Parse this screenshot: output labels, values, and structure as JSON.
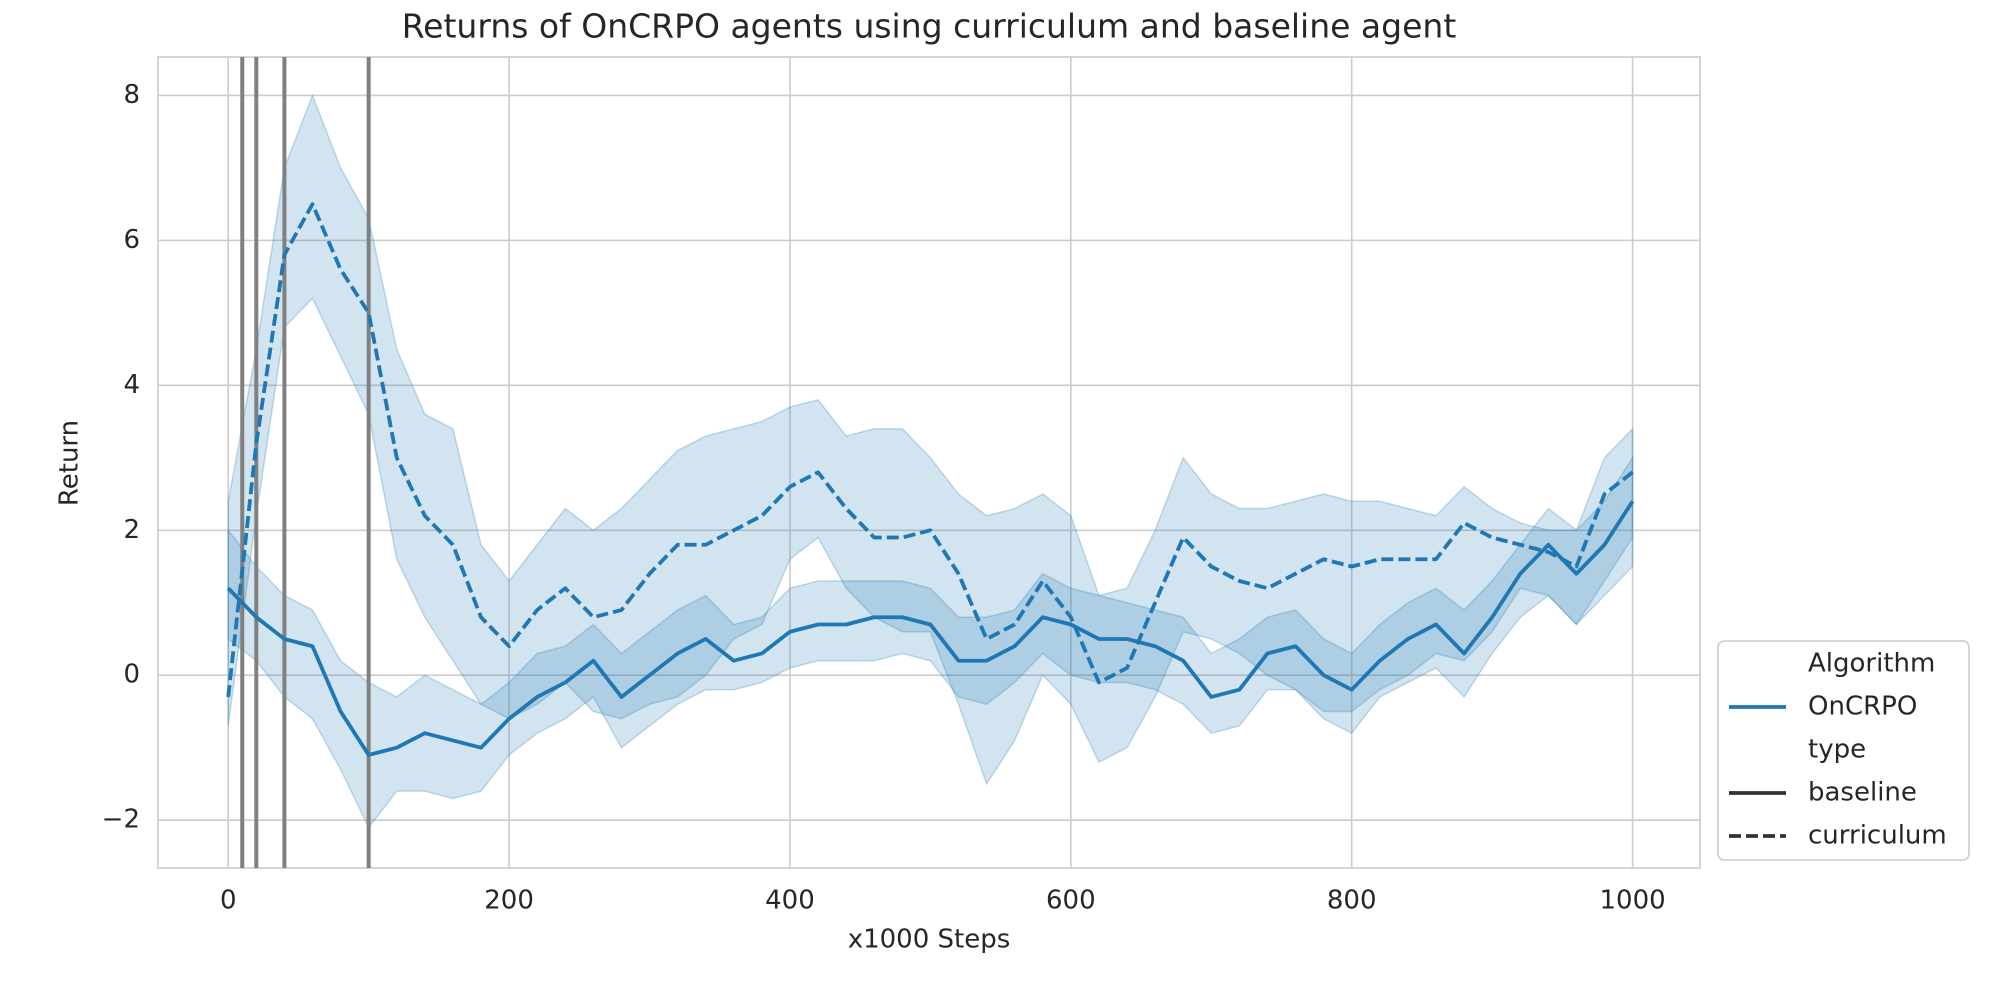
{
  "chart_data": {
    "type": "line",
    "title": "Returns of OnCRPO agents using curriculum and baseline agent",
    "xlabel": "x1000 Steps",
    "ylabel": "Return",
    "xlim": [
      -50,
      1048
    ],
    "ylim": [
      -2.66,
      8.53
    ],
    "xticks": [
      0,
      200,
      400,
      600,
      800,
      1000
    ],
    "yticks": [
      {
        "value": -2,
        "label": "−2"
      },
      0,
      2,
      4,
      6,
      8
    ],
    "grid": true,
    "vlines": [
      10,
      20,
      40,
      100
    ],
    "vline_color": "#808080",
    "x": [
      0,
      20,
      40,
      60,
      80,
      100,
      120,
      140,
      160,
      180,
      200,
      220,
      240,
      260,
      280,
      300,
      320,
      340,
      360,
      380,
      400,
      420,
      440,
      460,
      480,
      500,
      520,
      540,
      560,
      580,
      600,
      620,
      640,
      660,
      680,
      700,
      720,
      740,
      760,
      780,
      800,
      820,
      840,
      860,
      880,
      900,
      920,
      940,
      960,
      980,
      1000
    ],
    "algorithm": "OnCRPO",
    "series": [
      {
        "name": "baseline",
        "color": "#1f77b4",
        "dash": "solid",
        "values": [
          1.2,
          0.8,
          0.5,
          0.4,
          -0.5,
          -1.1,
          -1.0,
          -0.8,
          -0.9,
          -1.0,
          -0.6,
          -0.3,
          -0.1,
          0.2,
          -0.3,
          0.0,
          0.3,
          0.5,
          0.2,
          0.3,
          0.6,
          0.7,
          0.7,
          0.8,
          0.8,
          0.7,
          0.2,
          0.2,
          0.4,
          0.8,
          0.7,
          0.5,
          0.5,
          0.4,
          0.2,
          -0.3,
          -0.2,
          0.3,
          0.4,
          0.0,
          -0.2,
          0.2,
          0.5,
          0.7,
          0.3,
          0.8,
          1.4,
          1.8,
          1.4,
          1.8,
          2.4
        ],
        "lower": [
          0.5,
          0.2,
          -0.3,
          -0.6,
          -1.3,
          -2.1,
          -1.6,
          -1.6,
          -1.7,
          -1.6,
          -1.1,
          -0.8,
          -0.6,
          -0.3,
          -1.0,
          -0.7,
          -0.4,
          -0.2,
          -0.2,
          -0.1,
          0.1,
          0.2,
          0.2,
          0.2,
          0.3,
          0.2,
          -0.3,
          -0.4,
          -0.1,
          0.3,
          0.0,
          -0.1,
          -0.1,
          -0.2,
          -0.4,
          -0.8,
          -0.7,
          -0.2,
          -0.2,
          -0.6,
          -0.8,
          -0.3,
          -0.1,
          0.1,
          -0.3,
          0.3,
          0.8,
          1.1,
          0.7,
          1.1,
          1.5
        ],
        "upper": [
          2.0,
          1.5,
          1.1,
          0.9,
          0.2,
          -0.1,
          -0.3,
          0.0,
          -0.2,
          -0.4,
          -0.1,
          0.3,
          0.4,
          0.7,
          0.3,
          0.6,
          0.9,
          1.1,
          0.7,
          0.8,
          1.2,
          1.3,
          1.3,
          1.3,
          1.3,
          1.2,
          0.8,
          0.8,
          0.9,
          1.4,
          1.2,
          1.1,
          1.0,
          0.9,
          0.8,
          0.3,
          0.5,
          0.8,
          0.9,
          0.5,
          0.3,
          0.7,
          1.0,
          1.2,
          0.9,
          1.3,
          1.8,
          2.3,
          2.0,
          2.4,
          3.0
        ]
      },
      {
        "name": "curriculum",
        "color": "#1f77b4",
        "dash": "dashed",
        "values": [
          -0.3,
          3.2,
          5.8,
          6.5,
          5.6,
          5.0,
          3.0,
          2.2,
          1.8,
          0.8,
          0.4,
          0.9,
          1.2,
          0.8,
          0.9,
          1.4,
          1.8,
          1.8,
          2.0,
          2.2,
          2.6,
          2.8,
          2.3,
          1.9,
          1.9,
          2.0,
          1.4,
          0.5,
          0.7,
          1.3,
          0.8,
          -0.1,
          0.1,
          1.0,
          1.9,
          1.5,
          1.3,
          1.2,
          1.4,
          1.6,
          1.5,
          1.6,
          1.6,
          1.6,
          2.1,
          1.9,
          1.8,
          1.7,
          1.5,
          2.5,
          2.8
        ],
        "lower": [
          -0.7,
          2.2,
          4.8,
          5.2,
          4.4,
          3.6,
          1.6,
          0.8,
          0.2,
          -0.4,
          -0.6,
          -0.4,
          -0.1,
          -0.5,
          -0.6,
          -0.4,
          -0.3,
          0.0,
          0.5,
          0.7,
          1.6,
          1.9,
          1.2,
          0.8,
          0.6,
          0.6,
          -0.4,
          -1.5,
          -0.9,
          0.0,
          -0.4,
          -1.2,
          -1.0,
          -0.3,
          0.6,
          0.5,
          0.3,
          0.0,
          -0.2,
          -0.5,
          -0.5,
          -0.2,
          0.0,
          0.3,
          0.2,
          0.6,
          1.2,
          1.1,
          0.7,
          1.3,
          1.9
        ],
        "upper": [
          2.4,
          4.5,
          7.0,
          8.0,
          7.0,
          6.3,
          4.5,
          3.6,
          3.4,
          1.8,
          1.3,
          1.8,
          2.3,
          2.0,
          2.3,
          2.7,
          3.1,
          3.3,
          3.4,
          3.5,
          3.7,
          3.8,
          3.3,
          3.4,
          3.4,
          3.0,
          2.5,
          2.2,
          2.3,
          2.5,
          2.2,
          1.1,
          1.2,
          2.0,
          3.0,
          2.5,
          2.3,
          2.3,
          2.4,
          2.5,
          2.4,
          2.4,
          2.3,
          2.2,
          2.6,
          2.3,
          2.1,
          2.0,
          2.0,
          3.0,
          3.4
        ]
      }
    ],
    "legend": {
      "position": "lower right outside",
      "hue_title": "Algorithm",
      "style_title": "type",
      "style_color": "#333333"
    }
  }
}
